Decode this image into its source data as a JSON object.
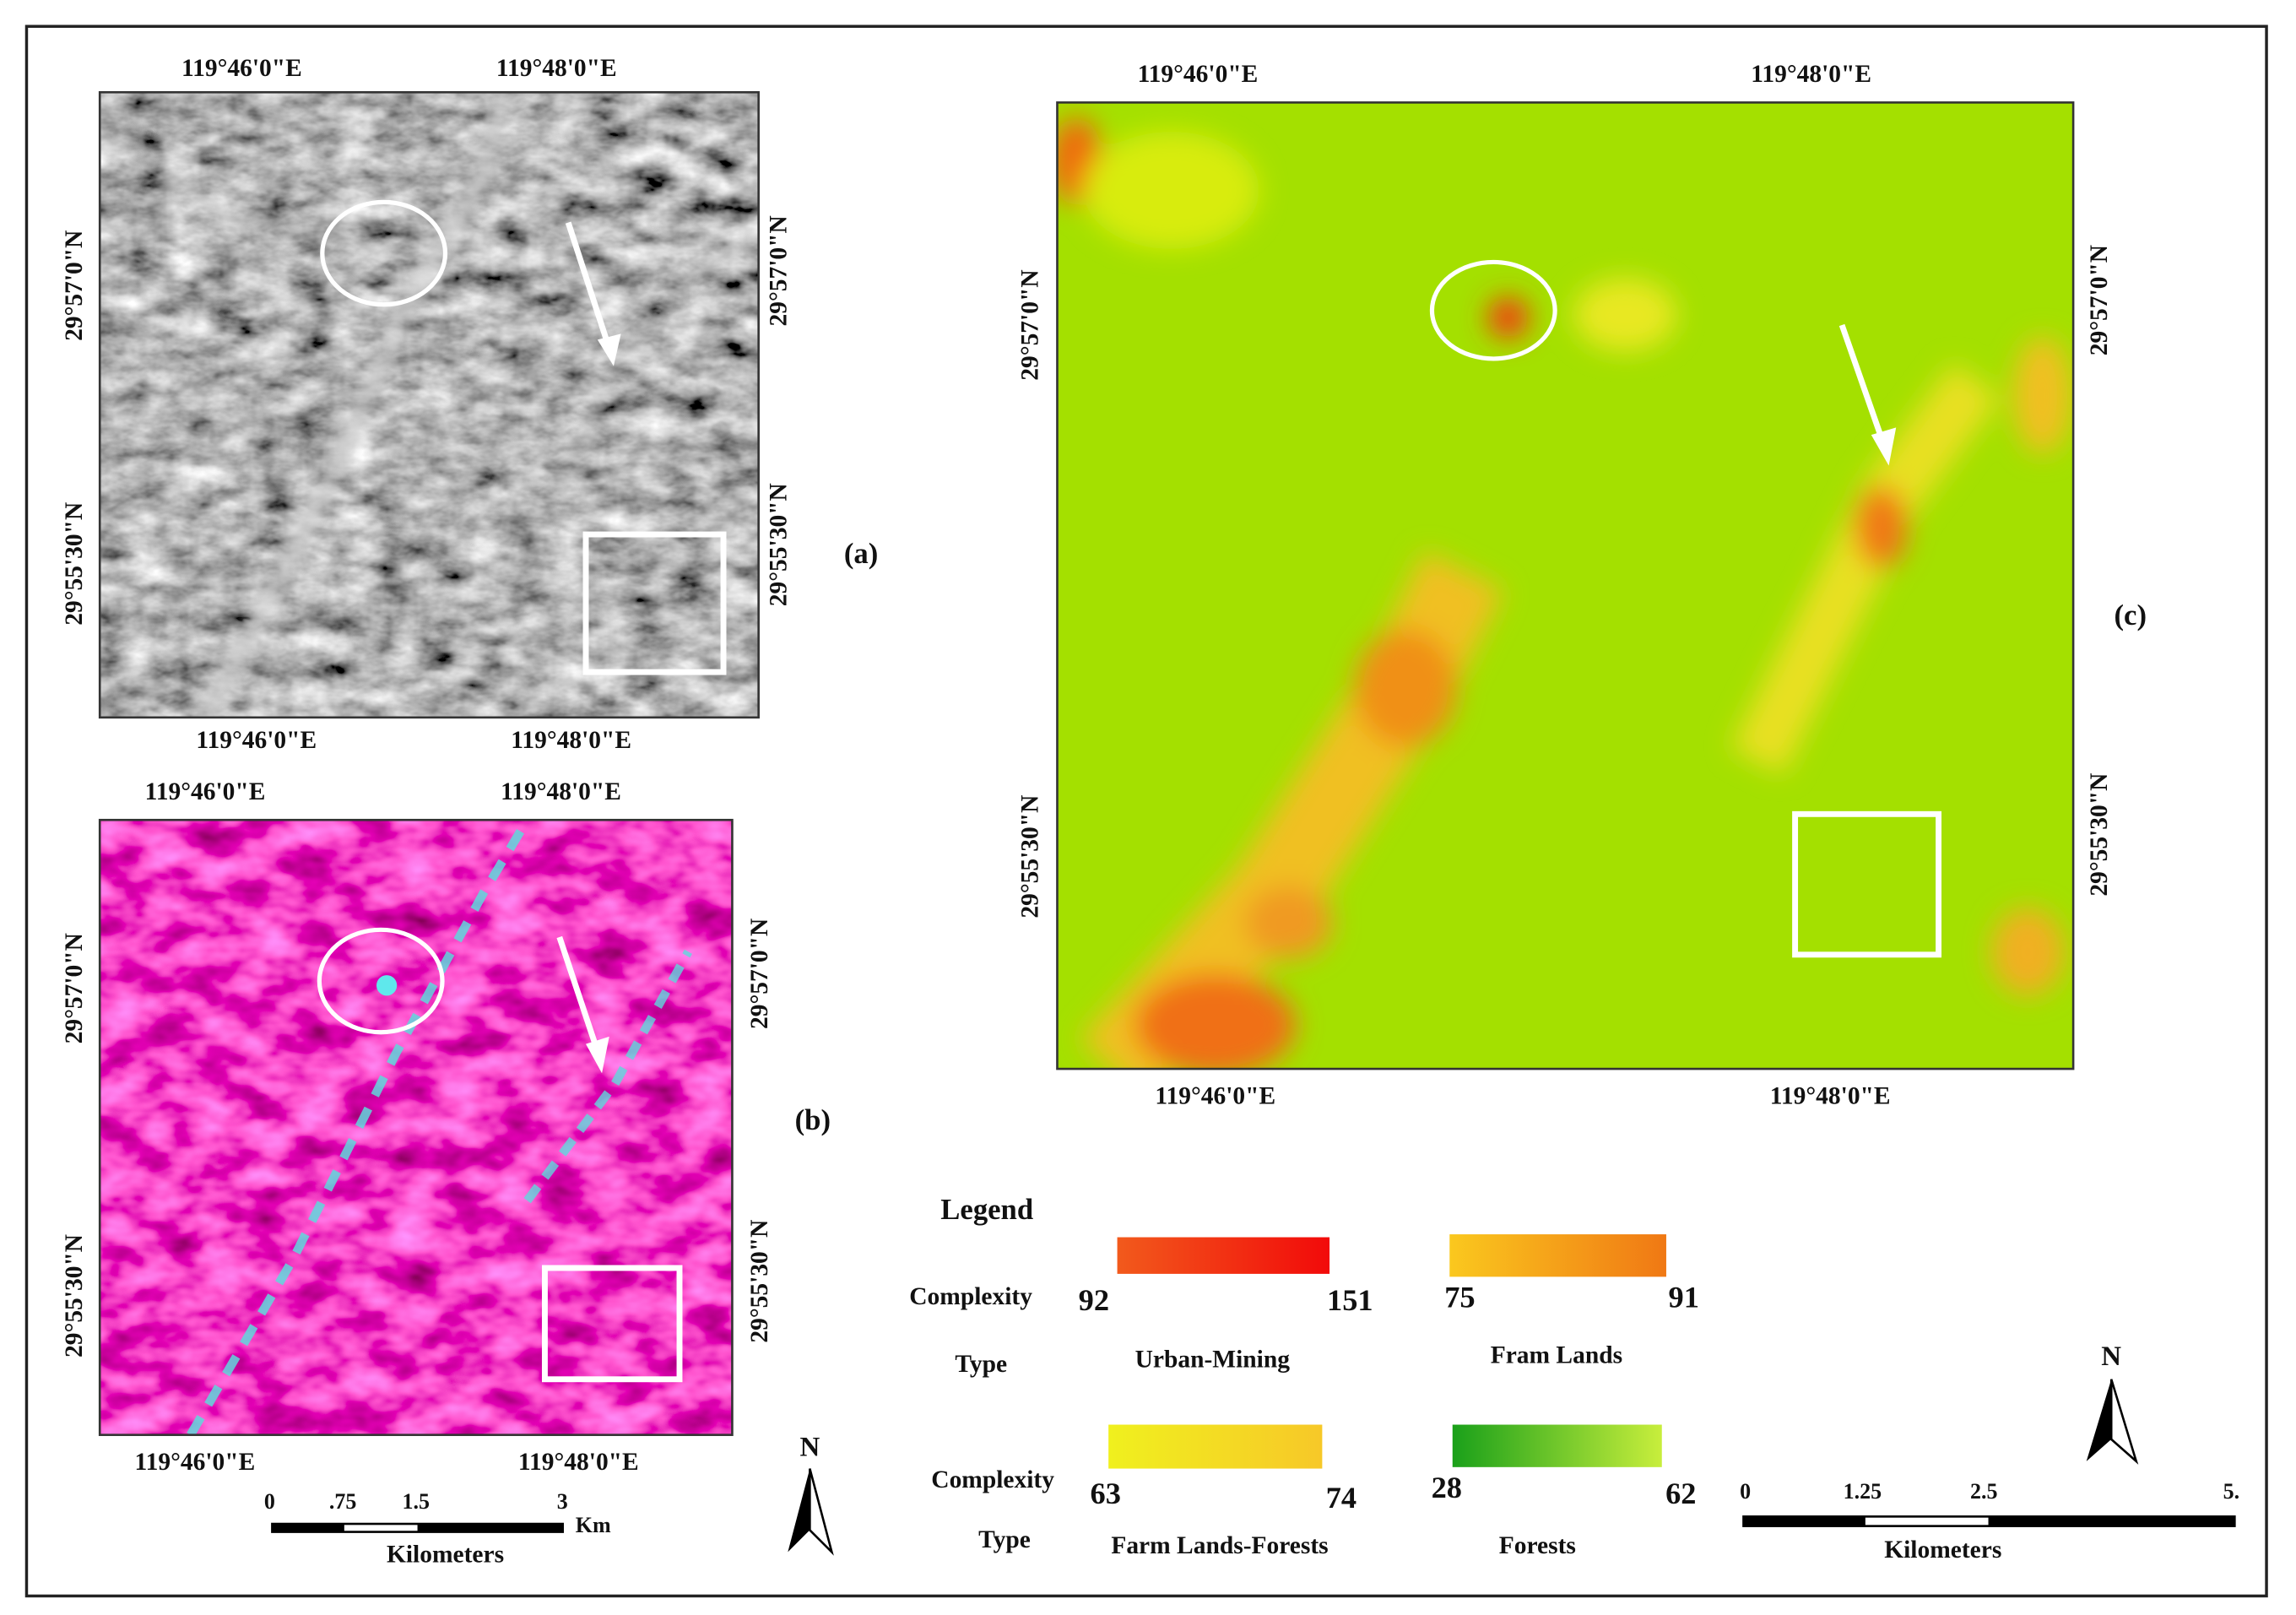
{
  "panels": [
    {
      "label": "(a)",
      "top": [
        "119°46'0\"E",
        "119°48'0\"E"
      ],
      "bottom": [
        "119°46'0\"E",
        "119°48'0\"E"
      ],
      "left": [
        "29°57'0\"N",
        "29°55'30\"N"
      ],
      "right": [
        "29°57'0\"N",
        "29°55'30\"N"
      ]
    },
    {
      "label": "(b)",
      "top": [
        "119°46'0\"E",
        "119°48'0\"E"
      ],
      "bottom": [
        "119°46'0\"E",
        "119°48'0\"E"
      ],
      "left": [
        "29°57'0\"N",
        "29°55'30\"N"
      ],
      "right": [
        "29°57'0\"N",
        "29°55'30\"N"
      ]
    },
    {
      "label": "(c)",
      "top": [
        "119°46'0\"E",
        "119°48'0\"E"
      ],
      "bottom": [
        "119°46'0\"E",
        "119°48'0\"E"
      ],
      "left": [
        "29°57'0\"N",
        "29°55'30\"N"
      ],
      "right": [
        "29°57'0\"N",
        "29°55'30\"N"
      ]
    }
  ],
  "legend": {
    "title": "Legend",
    "rows": [
      {
        "complexity": "Complexity",
        "type": "Type"
      },
      {
        "complexity": "Complexity",
        "type": "Type"
      }
    ],
    "items": [
      {
        "min": 92,
        "max": 151,
        "type": "Urban-Mining"
      },
      {
        "min": 75,
        "max": 91,
        "type": "Fram Lands"
      },
      {
        "min": 63,
        "max": 74,
        "type": "Farm Lands-Forests"
      },
      {
        "min": 28,
        "max": 62,
        "type": "Forests"
      }
    ]
  },
  "scale_bar_small": {
    "ticks": [
      0,
      ".75",
      1.5,
      3
    ],
    "unit": "Km",
    "title": "Kilometers"
  },
  "scale_bar_large": {
    "ticks": [
      0,
      1.25,
      2.5,
      "5."
    ],
    "title": "Kilometers"
  },
  "north": [
    "N",
    "N"
  ]
}
